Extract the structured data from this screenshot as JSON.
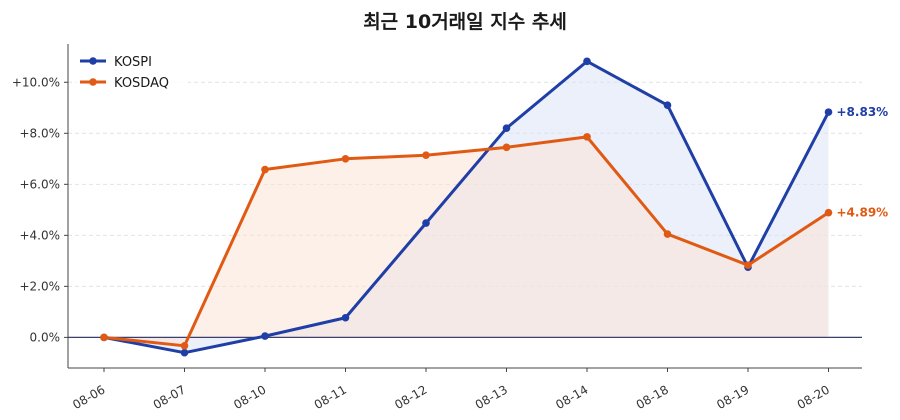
{
  "chart_data": {
    "type": "line",
    "title": "최근 10거래일 지수 추세",
    "categories": [
      "08-06",
      "08-07",
      "08-10",
      "08-11",
      "08-12",
      "08-13",
      "08-14",
      "08-18",
      "08-19",
      "08-20"
    ],
    "y_tick_labels": [
      "0.0%",
      "+2.0%",
      "+4.0%",
      "+6.0%",
      "+8.0%",
      "+10.0%"
    ],
    "ylim": [
      -1.2,
      11.5
    ],
    "y_ticks": [
      0,
      2,
      4,
      6,
      8,
      10
    ],
    "grid": true,
    "legend_position": "top-left",
    "series": [
      {
        "name": "KOSPI",
        "color": "#1f3fa6",
        "fill": "#dbe3f6",
        "values": [
          0.0,
          -0.6,
          0.05,
          0.77,
          4.48,
          8.2,
          10.82,
          9.1,
          2.75,
          8.83
        ],
        "end_label": "+8.83%"
      },
      {
        "name": "KOSDAQ",
        "color": "#e05a14",
        "fill": "#fbe3d6",
        "values": [
          0.0,
          -0.33,
          6.58,
          7.0,
          7.14,
          7.45,
          7.86,
          4.05,
          2.83,
          4.89
        ],
        "end_label": "+4.89%"
      }
    ]
  }
}
